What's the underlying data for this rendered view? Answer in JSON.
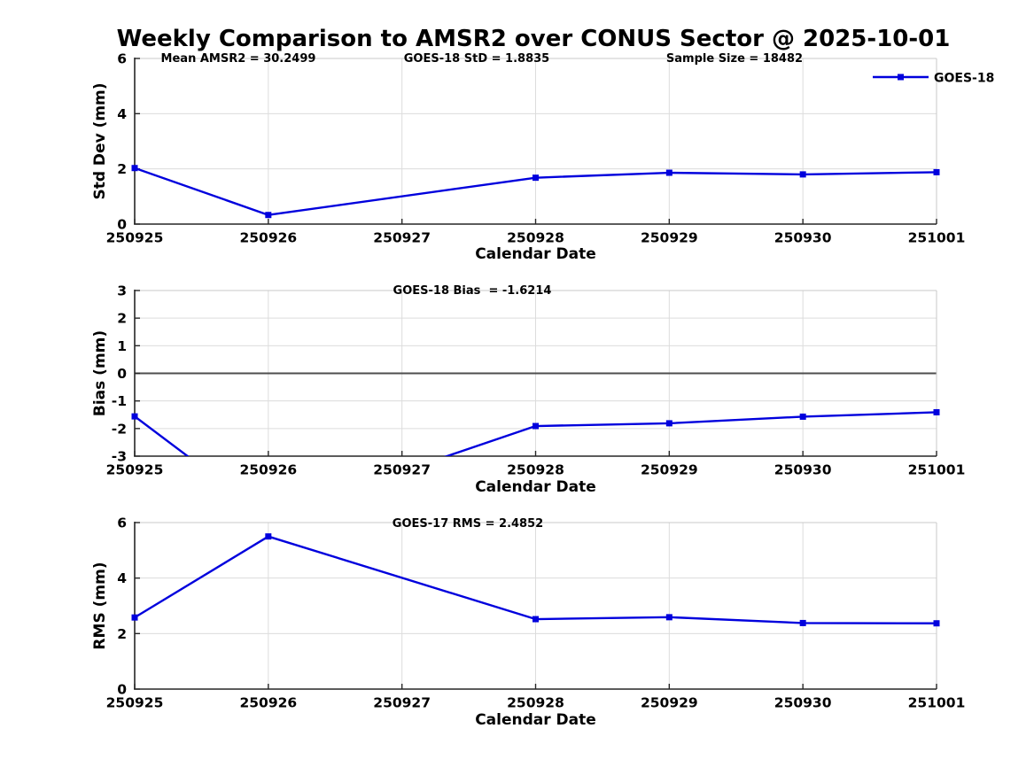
{
  "figure": {
    "title": "Weekly Comparison to AMSR2 over CONUS Sector @ 2025-10-01"
  },
  "legend": {
    "label": "GOES-18"
  },
  "colors": {
    "line": "#0000dd",
    "marker": "#0000dd",
    "grid": "#dcdcdc",
    "axis_dark": "#262626",
    "axis_light": "#c8c8c8",
    "zero_line": "#4d4d4d",
    "text": "#000000",
    "background": "#ffffff"
  },
  "chart_data": [
    {
      "type": "line",
      "ylabel": "Std Dev (mm)",
      "xlabel": "Calendar Date",
      "annotations": [
        "Mean AMSR2 = 30.2499",
        "GOES-18 StD = 1.8835",
        "Sample Size = 18482"
      ],
      "xticks": [
        "250925",
        "250926",
        "250927",
        "250928",
        "250929",
        "250930",
        "251001"
      ],
      "yticks": [
        0,
        2,
        4,
        6
      ],
      "ylim": [
        0,
        6
      ],
      "grid": true,
      "legend_position": "northeast-outside",
      "series": [
        {
          "name": "GOES-18",
          "marker": "square",
          "x": [
            "250925",
            "250926",
            "250928",
            "250929",
            "250930",
            "251001"
          ],
          "values": [
            2.03,
            0.33,
            1.68,
            1.86,
            1.8,
            1.88
          ]
        }
      ]
    },
    {
      "type": "line",
      "ylabel": "Bias (mm)",
      "xlabel": "Calendar Date",
      "annotations": [
        "GOES-18 Bias  = -1.6214"
      ],
      "xticks": [
        "250925",
        "250926",
        "250927",
        "250928",
        "250929",
        "250930",
        "251001"
      ],
      "yticks": [
        -3,
        -2,
        -1,
        0,
        1,
        2,
        3
      ],
      "ylim": [
        -3,
        3
      ],
      "grid": true,
      "zero_line": true,
      "series": [
        {
          "name": "GOES-18",
          "marker": "square",
          "x": [
            "250925",
            "250926",
            "250928",
            "250929",
            "250930",
            "251001"
          ],
          "values": [
            -1.56,
            -5.2,
            -1.91,
            -1.81,
            -1.57,
            -1.41
          ]
        }
      ]
    },
    {
      "type": "line",
      "ylabel": "RMS (mm)",
      "xlabel": "Calendar Date",
      "annotations": [
        "GOES-17 RMS = 2.4852"
      ],
      "xticks": [
        "250925",
        "250926",
        "250927",
        "250928",
        "250929",
        "250930",
        "251001"
      ],
      "yticks": [
        0,
        2,
        4,
        6
      ],
      "ylim": [
        0,
        6
      ],
      "grid": true,
      "series": [
        {
          "name": "GOES-18",
          "marker": "square",
          "x": [
            "250925",
            "250926",
            "250928",
            "250929",
            "250930",
            "251001"
          ],
          "values": [
            2.58,
            5.5,
            2.52,
            2.59,
            2.38,
            2.37
          ]
        }
      ]
    }
  ]
}
